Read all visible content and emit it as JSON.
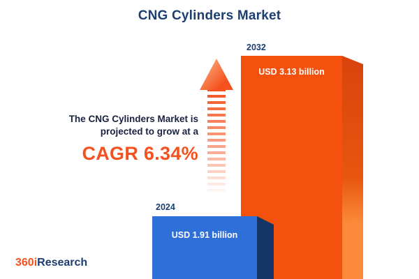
{
  "title": "CNG Cylinders Market",
  "annotation": {
    "line1": "The CNG Cylinders Market is",
    "line2": "projected to grow at a",
    "cagr": "CAGR 6.34%"
  },
  "chart_data": {
    "type": "bar",
    "title": "CNG Cylinders Market",
    "categories": [
      "2024",
      "2032"
    ],
    "values": [
      1.91,
      3.13
    ],
    "unit": "USD billion",
    "value_labels": [
      "USD 1.91 billion",
      "USD 3.13 billion"
    ],
    "growth": {
      "metric": "CAGR",
      "value": "6.34%"
    },
    "legend": "none",
    "grid": false,
    "bar_colors": {
      "2024": "#2e6fd8",
      "2032": "#f4510e"
    }
  },
  "logo": {
    "prefix": "360i",
    "suffix": "Research"
  },
  "colors": {
    "title_navy": "#1c3e70",
    "accent_orange": "#f4511e",
    "bar_blue": "#2e6fd8",
    "bar_blue_dark": "#153567",
    "bar_orange": "#f4510e",
    "bar_orange_dark": "#d9430c",
    "value_text": "#ffffff"
  }
}
